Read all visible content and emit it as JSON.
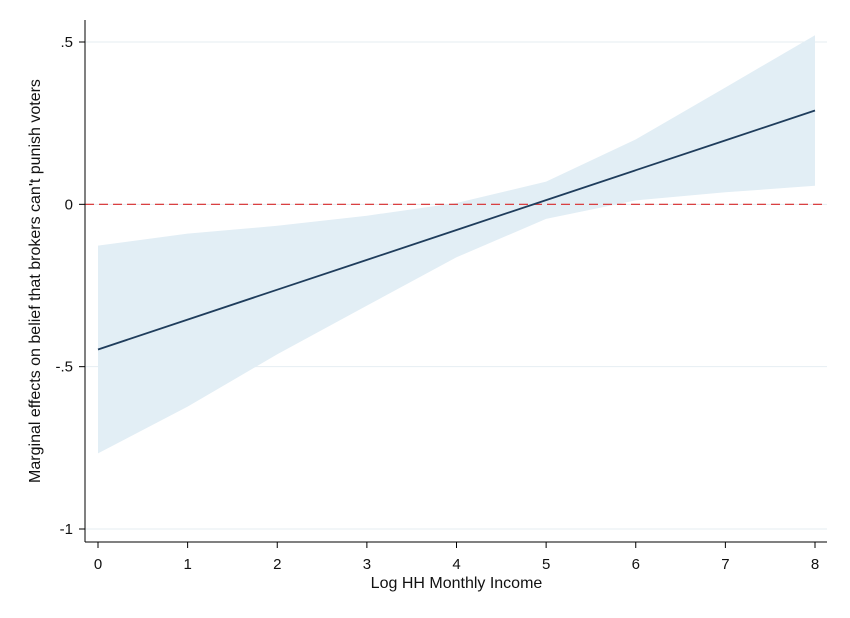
{
  "chart_data": {
    "type": "line",
    "title": "",
    "xlabel": "Log HH Monthly Income",
    "ylabel": "Marginal effects on belief that brokers can't punish voters",
    "xlim": [
      0,
      8
    ],
    "ylim": [
      -1,
      0.5
    ],
    "x_ticks": [
      0,
      1,
      2,
      3,
      4,
      5,
      6,
      7,
      8
    ],
    "x_tick_labels": [
      "0",
      "1",
      "2",
      "3",
      "4",
      "5",
      "6",
      "7",
      "8"
    ],
    "y_ticks": [
      -1,
      -0.5,
      0,
      0.5
    ],
    "y_tick_labels": [
      "-1",
      "-.5",
      "0",
      ".5"
    ],
    "grid": "horizontal",
    "legend": "none",
    "reference_line": {
      "y": 0,
      "style": "dashed",
      "color": "#d62728"
    },
    "series": [
      {
        "x": [
          0,
          1,
          2,
          3,
          4,
          5,
          6,
          7,
          8
        ],
        "estimate": [
          -0.447,
          -0.355,
          -0.263,
          -0.171,
          -0.079,
          0.013,
          0.105,
          0.197,
          0.289
        ],
        "ci_lower": [
          -0.767,
          -0.623,
          -0.462,
          -0.312,
          -0.163,
          -0.045,
          0.012,
          0.037,
          0.057
        ],
        "ci_upper": [
          -0.127,
          -0.09,
          -0.066,
          -0.035,
          0.004,
          0.07,
          0.2,
          0.36,
          0.521
        ],
        "line_color": "#1f3d5c",
        "band_color": "#e2eef5"
      }
    ]
  }
}
